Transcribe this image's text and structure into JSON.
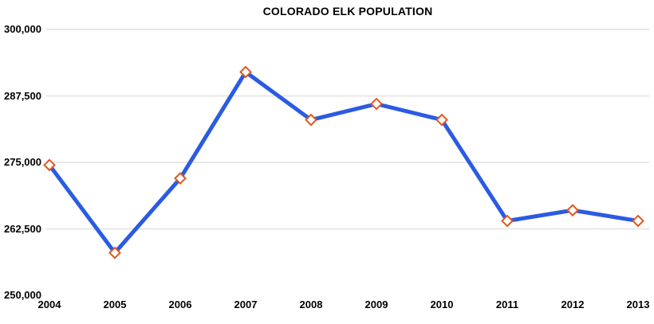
{
  "chart_data": {
    "type": "line",
    "title": "COLORADO ELK POPULATION",
    "categories": [
      "2004",
      "2005",
      "2006",
      "2007",
      "2008",
      "2009",
      "2010",
      "2011",
      "2012",
      "2013"
    ],
    "values": [
      274500,
      258000,
      272000,
      292000,
      283000,
      286000,
      283000,
      264000,
      266000,
      264000
    ],
    "xlabel": "",
    "ylabel": "",
    "ylim": [
      250000,
      300000
    ],
    "y_ticks": [
      {
        "label": "300,000",
        "value": 300000,
        "line": true
      },
      {
        "label": "287,500",
        "value": 287500,
        "line": true
      },
      {
        "label": "275,000",
        "value": 275000,
        "line": true
      },
      {
        "label": "262,500",
        "value": 262500,
        "line": true
      },
      {
        "label": "250,000",
        "value": 250000,
        "line": false
      }
    ],
    "grid": "horizontal",
    "legend": "none",
    "marker_shape": "diamond",
    "colors": {
      "line": "#2B5BE2",
      "marker_stroke": "#E0571E",
      "marker_fill": "#FFFFFF",
      "gridline": "#E8E8E8",
      "text": "#000000",
      "background": "#FFFFFF"
    }
  }
}
